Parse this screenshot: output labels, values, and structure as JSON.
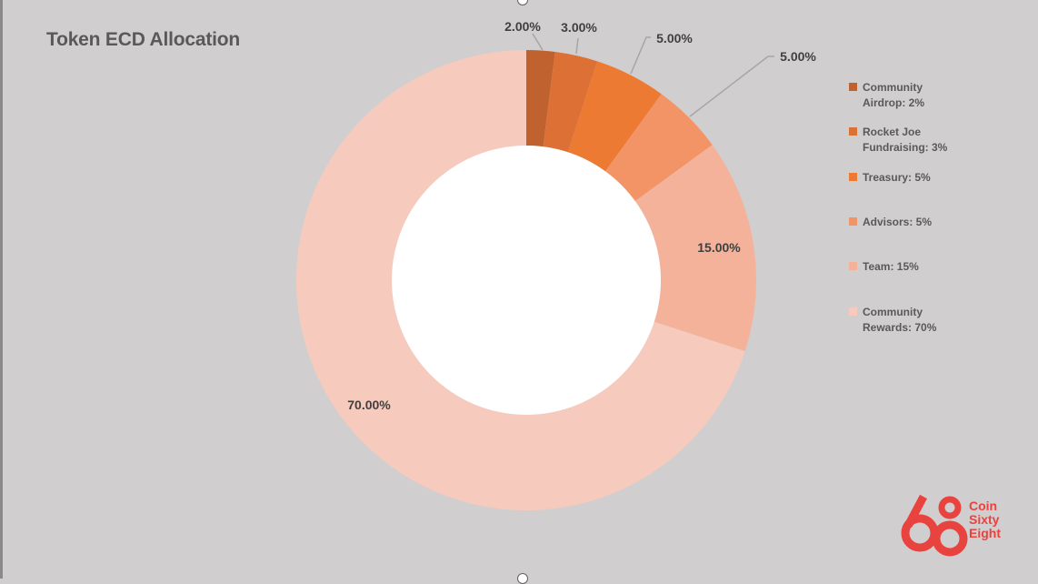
{
  "chart_data": {
    "type": "pie",
    "variant": "donut",
    "title": "Token ECD Allocation",
    "categories": [
      "Community Airdrop",
      "Rocket Joe Fundraising",
      "Treasury",
      "Advisors",
      "Team",
      "Community Rewards"
    ],
    "values": [
      2,
      3,
      5,
      5,
      15,
      70
    ],
    "data_labels": [
      "2.00%",
      "3.00%",
      "5.00%",
      "5.00%",
      "15.00%",
      "70.00%"
    ],
    "colors": [
      "#c0622f",
      "#dc7035",
      "#ec7a33",
      "#f39467",
      "#f4b29a",
      "#f6cbbd"
    ],
    "legend_position": "right",
    "legend": [
      "Community\nAirdrop: 2%",
      "Rocket Joe\nFundraising: 3%",
      "Treasury: 5%",
      "Advisors: 5%",
      "Team: 15%",
      "Community\nRewards: 70%"
    ]
  },
  "branding": {
    "logo_text": "Coin\nSixty\nEight",
    "logo_color": "#e8433f"
  }
}
